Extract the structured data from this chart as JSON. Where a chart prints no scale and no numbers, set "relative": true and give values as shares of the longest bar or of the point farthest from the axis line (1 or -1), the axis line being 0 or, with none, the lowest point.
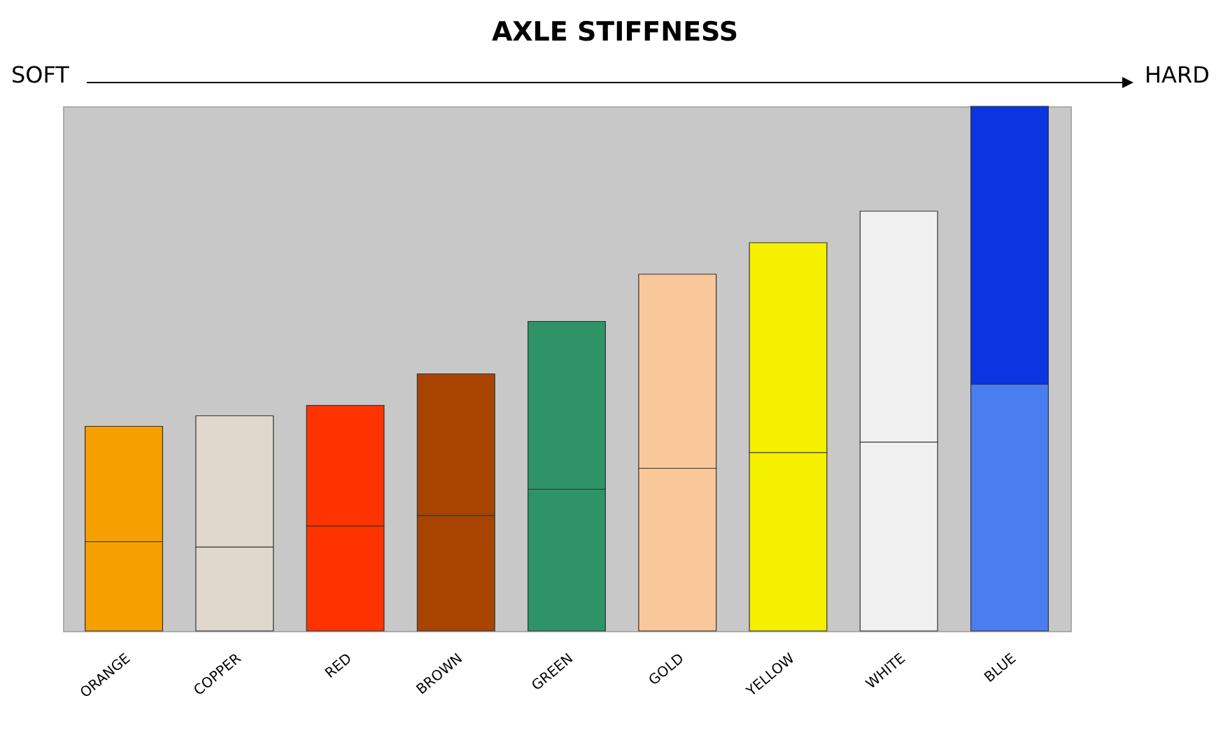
{
  "chart_data": {
    "type": "bar",
    "title": "AXLE STIFFNESS",
    "annotations": [
      "SOFT",
      "HARD"
    ],
    "categories": [
      "ORANGE",
      "COPPER",
      "RED",
      "BROWN",
      "GREEN",
      "GOLD",
      "YELLOW",
      "WHITE",
      "BLUE"
    ],
    "stacked": true,
    "relative": true,
    "series": [
      {
        "values": [
          0.17,
          0.16,
          0.2,
          0.22,
          0.27,
          0.31,
          0.34,
          0.36,
          0.47
        ],
        "colors": [
          "#f5a000",
          "#e0d8cc",
          "#ff3300",
          "#a84400",
          "#2e9468",
          "#f8c89a",
          "#f5f000",
          "#f0f0f0",
          "#4a7ef0"
        ]
      },
      {
        "values": [
          0.22,
          0.25,
          0.23,
          0.27,
          0.32,
          0.37,
          0.4,
          0.44,
          0.53
        ],
        "colors": [
          "#f5a000",
          "#e0d8cc",
          "#ff3300",
          "#a84400",
          "#2e9468",
          "#f8c89a",
          "#f5f000",
          "#f0f0f0",
          "#0a35e0"
        ]
      }
    ]
  }
}
